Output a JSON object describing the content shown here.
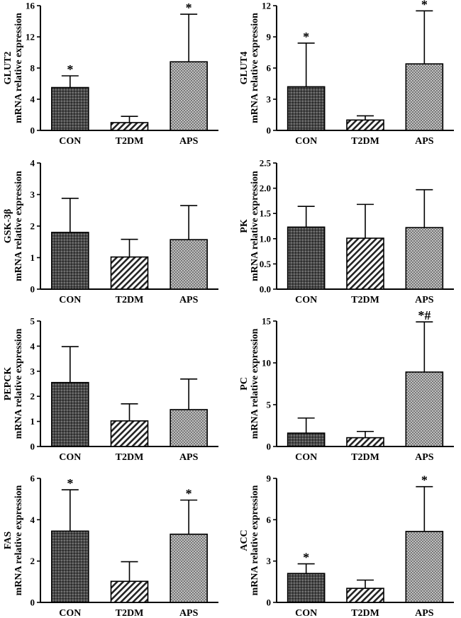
{
  "chart_data": [
    {
      "type": "bar",
      "ylabel_line1": "GLUT2",
      "ylabel_line2": "mRNA relative expression",
      "categories": [
        "CON",
        "T2DM",
        "APS"
      ],
      "values": [
        5.5,
        1.0,
        8.8
      ],
      "errors": [
        1.5,
        0.8,
        6.1
      ],
      "sig": [
        "*",
        "",
        "*"
      ],
      "ylim": [
        0,
        16
      ],
      "ticks": [
        "0",
        "4",
        "8",
        "12",
        "16"
      ]
    },
    {
      "type": "bar",
      "ylabel_line1": "GLUT4",
      "ylabel_line2": "mRNA relative expression",
      "categories": [
        "CON",
        "T2DM",
        "APS"
      ],
      "values": [
        4.2,
        1.0,
        6.4
      ],
      "errors": [
        4.2,
        0.4,
        5.1
      ],
      "sig": [
        "*",
        "",
        "*"
      ],
      "ylim": [
        0,
        12
      ],
      "ticks": [
        "0",
        "3",
        "6",
        "9",
        "12"
      ]
    },
    {
      "type": "bar",
      "ylabel_line1": "GSK-3β",
      "ylabel_line2": "mRNA relative expression",
      "categories": [
        "CON",
        "T2DM",
        "APS"
      ],
      "values": [
        1.8,
        1.02,
        1.57
      ],
      "errors": [
        1.08,
        0.56,
        1.08
      ],
      "sig": [
        "",
        "",
        ""
      ],
      "ylim": [
        0,
        4
      ],
      "ticks": [
        "0",
        "1",
        "2",
        "3",
        "4"
      ]
    },
    {
      "type": "bar",
      "ylabel_line1": "PK",
      "ylabel_line2": "mRNA relative expression",
      "categories": [
        "CON",
        "T2DM",
        "APS"
      ],
      "values": [
        1.23,
        1.01,
        1.22
      ],
      "errors": [
        0.41,
        0.67,
        0.75
      ],
      "sig": [
        "",
        "",
        ""
      ],
      "ylim": [
        0,
        2.5
      ],
      "ticks": [
        "0.0",
        "0.5",
        "1.0",
        "1.5",
        "2.0",
        "2.5"
      ]
    },
    {
      "type": "bar",
      "ylabel_line1": "PEPCK",
      "ylabel_line2": "mRNA relative expression",
      "categories": [
        "CON",
        "T2DM",
        "APS"
      ],
      "values": [
        2.55,
        1.02,
        1.47
      ],
      "errors": [
        1.43,
        0.68,
        1.22
      ],
      "sig": [
        "",
        "",
        ""
      ],
      "ylim": [
        0,
        5
      ],
      "ticks": [
        "0",
        "1",
        "2",
        "3",
        "4",
        "5"
      ]
    },
    {
      "type": "bar",
      "ylabel_line1": "PC",
      "ylabel_line2": "mRNA relative expression",
      "categories": [
        "CON",
        "T2DM",
        "APS"
      ],
      "values": [
        1.6,
        1.05,
        8.9
      ],
      "errors": [
        1.8,
        0.75,
        6.0
      ],
      "sig": [
        "",
        "",
        "*#"
      ],
      "ylim": [
        0,
        15
      ],
      "ticks": [
        "0",
        "5",
        "10",
        "15"
      ]
    },
    {
      "type": "bar",
      "ylabel_line1": "FAS",
      "ylabel_line2": "mRNA relative expression",
      "categories": [
        "CON",
        "T2DM",
        "APS"
      ],
      "values": [
        3.45,
        1.02,
        3.3
      ],
      "errors": [
        2.0,
        0.95,
        1.65
      ],
      "sig": [
        "*",
        "",
        "*"
      ],
      "ylim": [
        0,
        6
      ],
      "ticks": [
        "0",
        "2",
        "4",
        "6"
      ]
    },
    {
      "type": "bar",
      "ylabel_line1": "ACC",
      "ylabel_line2": "mRNA relative expression",
      "categories": [
        "CON",
        "T2DM",
        "APS"
      ],
      "values": [
        2.1,
        1.02,
        5.15
      ],
      "errors": [
        0.7,
        0.6,
        3.25
      ],
      "sig": [
        "*",
        "",
        "*"
      ],
      "ylim": [
        0,
        9
      ],
      "ticks": [
        "0",
        "3",
        "6",
        "9"
      ]
    }
  ]
}
